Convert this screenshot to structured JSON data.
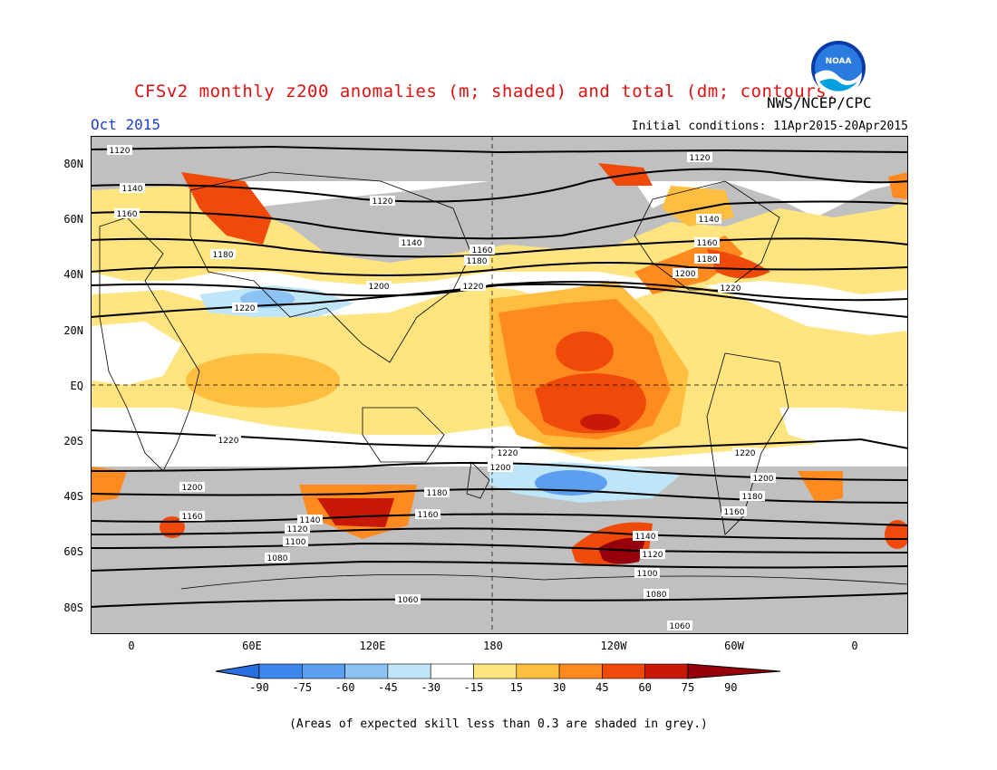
{
  "title": "CFSv2 monthly z200 anomalies (m; shaded) and total (dm; contours)",
  "agency": "NWS/NCEP/CPC",
  "logo_text": "NOAA",
  "month": "Oct 2015",
  "initial_conditions": "Initial conditions: 11Apr2015-20Apr2015",
  "latitude_labels": [
    "80N",
    "60N",
    "40N",
    "20N",
    "EQ",
    "20S",
    "40S",
    "60S",
    "80S"
  ],
  "longitude_labels": [
    "0",
    "60E",
    "120E",
    "180",
    "120W",
    "60W",
    "0"
  ],
  "colorbar": {
    "labels": [
      "-90",
      "-75",
      "-60",
      "-45",
      "-30",
      "-15",
      "15",
      "30",
      "45",
      "60",
      "75",
      "90"
    ],
    "colors": [
      "#2a6fe0",
      "#3c86ee",
      "#5c9ef0",
      "#8cc2f4",
      "#bfe6f8",
      "#ffffff",
      "#ffe480",
      "#ffbe40",
      "#ff8a20",
      "#f04a0a",
      "#c81808",
      "#96000a"
    ]
  },
  "contour_labels": [
    "1120",
    "1140",
    "1160",
    "1180",
    "1200",
    "1220",
    "1100",
    "1080",
    "1060"
  ],
  "colors": {
    "title": "#e01010",
    "month": "#1a3fd8",
    "low_skill_grey": "#c0c0c0"
  },
  "footnote": "(Areas of expected skill less than 0.3 are shaded in grey.)"
}
